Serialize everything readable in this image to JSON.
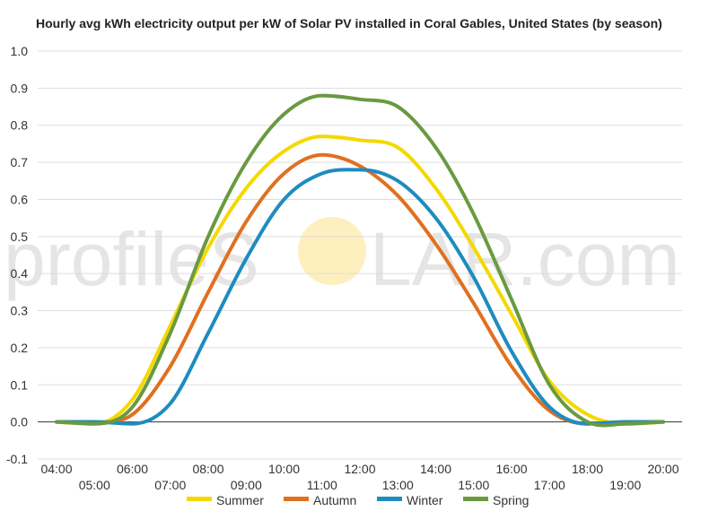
{
  "chart_data": {
    "type": "line",
    "title": "Hourly avg kWh electricity output per kW of Solar PV installed in Coral Gables, United States (by season)",
    "xlabel": "",
    "ylabel": "",
    "ylim": [
      -0.1,
      1.0
    ],
    "yticks": [
      "-0.1",
      "0.0",
      "0.1",
      "0.2",
      "0.3",
      "0.4",
      "0.5",
      "0.6",
      "0.7",
      "0.8",
      "0.9",
      "1.0"
    ],
    "xticks_upper": [
      "04:00",
      "06:00",
      "08:00",
      "10:00",
      "12:00",
      "14:00",
      "16:00",
      "18:00",
      "20:00"
    ],
    "xticks_lower": [
      "05:00",
      "07:00",
      "09:00",
      "11:00",
      "13:00",
      "15:00",
      "17:00",
      "19:00"
    ],
    "x": [
      "04:00",
      "05:00",
      "06:00",
      "07:00",
      "08:00",
      "09:00",
      "10:00",
      "11:00",
      "12:00",
      "13:00",
      "14:00",
      "15:00",
      "16:00",
      "17:00",
      "18:00",
      "19:00",
      "20:00"
    ],
    "grid": true,
    "legend_position": "bottom",
    "series": [
      {
        "name": "Summer",
        "color": "#F5D800",
        "values": [
          0.0,
          -0.005,
          0.06,
          0.26,
          0.47,
          0.63,
          0.73,
          0.77,
          0.76,
          0.74,
          0.63,
          0.47,
          0.29,
          0.11,
          0.02,
          -0.005,
          0.0
        ]
      },
      {
        "name": "Autumn",
        "color": "#E07020",
        "values": [
          0.0,
          0.0,
          0.02,
          0.15,
          0.35,
          0.54,
          0.67,
          0.72,
          0.69,
          0.61,
          0.48,
          0.32,
          0.15,
          0.03,
          -0.005,
          0.0,
          0.0
        ]
      },
      {
        "name": "Winter",
        "color": "#1E8CC0",
        "values": [
          0.0,
          0.0,
          -0.005,
          0.05,
          0.24,
          0.44,
          0.6,
          0.67,
          0.68,
          0.65,
          0.55,
          0.39,
          0.19,
          0.04,
          -0.005,
          0.0,
          0.0
        ]
      },
      {
        "name": "Spring",
        "color": "#6A9A40",
        "values": [
          0.0,
          -0.005,
          0.04,
          0.24,
          0.5,
          0.7,
          0.83,
          0.88,
          0.87,
          0.85,
          0.74,
          0.56,
          0.33,
          0.1,
          0.0,
          -0.005,
          0.0
        ]
      }
    ],
    "colors": {
      "grid": "#dddddd",
      "zero_line": "#333333"
    }
  },
  "watermark": {
    "text_left": "profileS",
    "text_right": "LAR.com",
    "sun_color": "#FDE9A8"
  }
}
